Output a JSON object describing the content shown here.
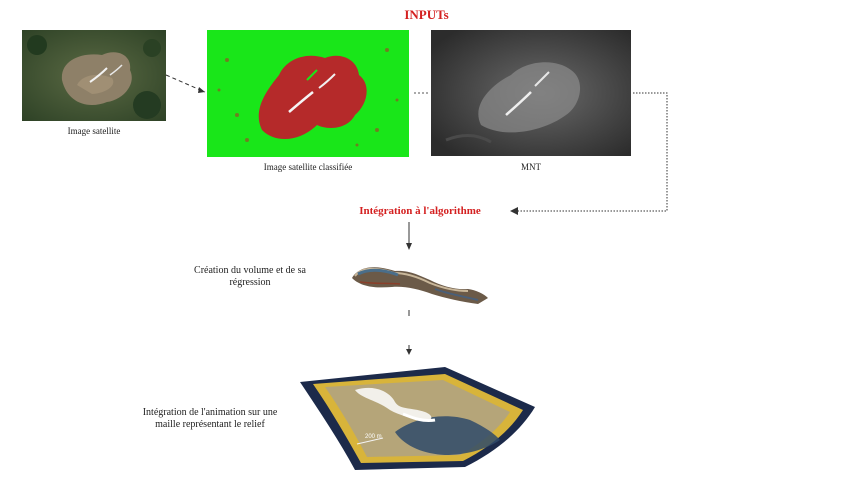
{
  "title": "INPUTs",
  "inputs": [
    {
      "caption": "Image satellite"
    },
    {
      "caption": "Image satellite classifiée"
    },
    {
      "caption": "MNT"
    }
  ],
  "steps": {
    "integration": "Intégration à l'algorithme",
    "volume": "Création du volume et de sa régression",
    "animation": "Intégration de l'animation sur une maille représentant le relief"
  },
  "mesh_scale_label": "200 m",
  "colors": {
    "title": "#d42020",
    "classified_background": "#19e619",
    "classified_area": "#b52a2a",
    "dem_background": "#3a3a3a",
    "mesh_frame": "#1c2a4a",
    "mesh_border": "#d8b43a"
  }
}
